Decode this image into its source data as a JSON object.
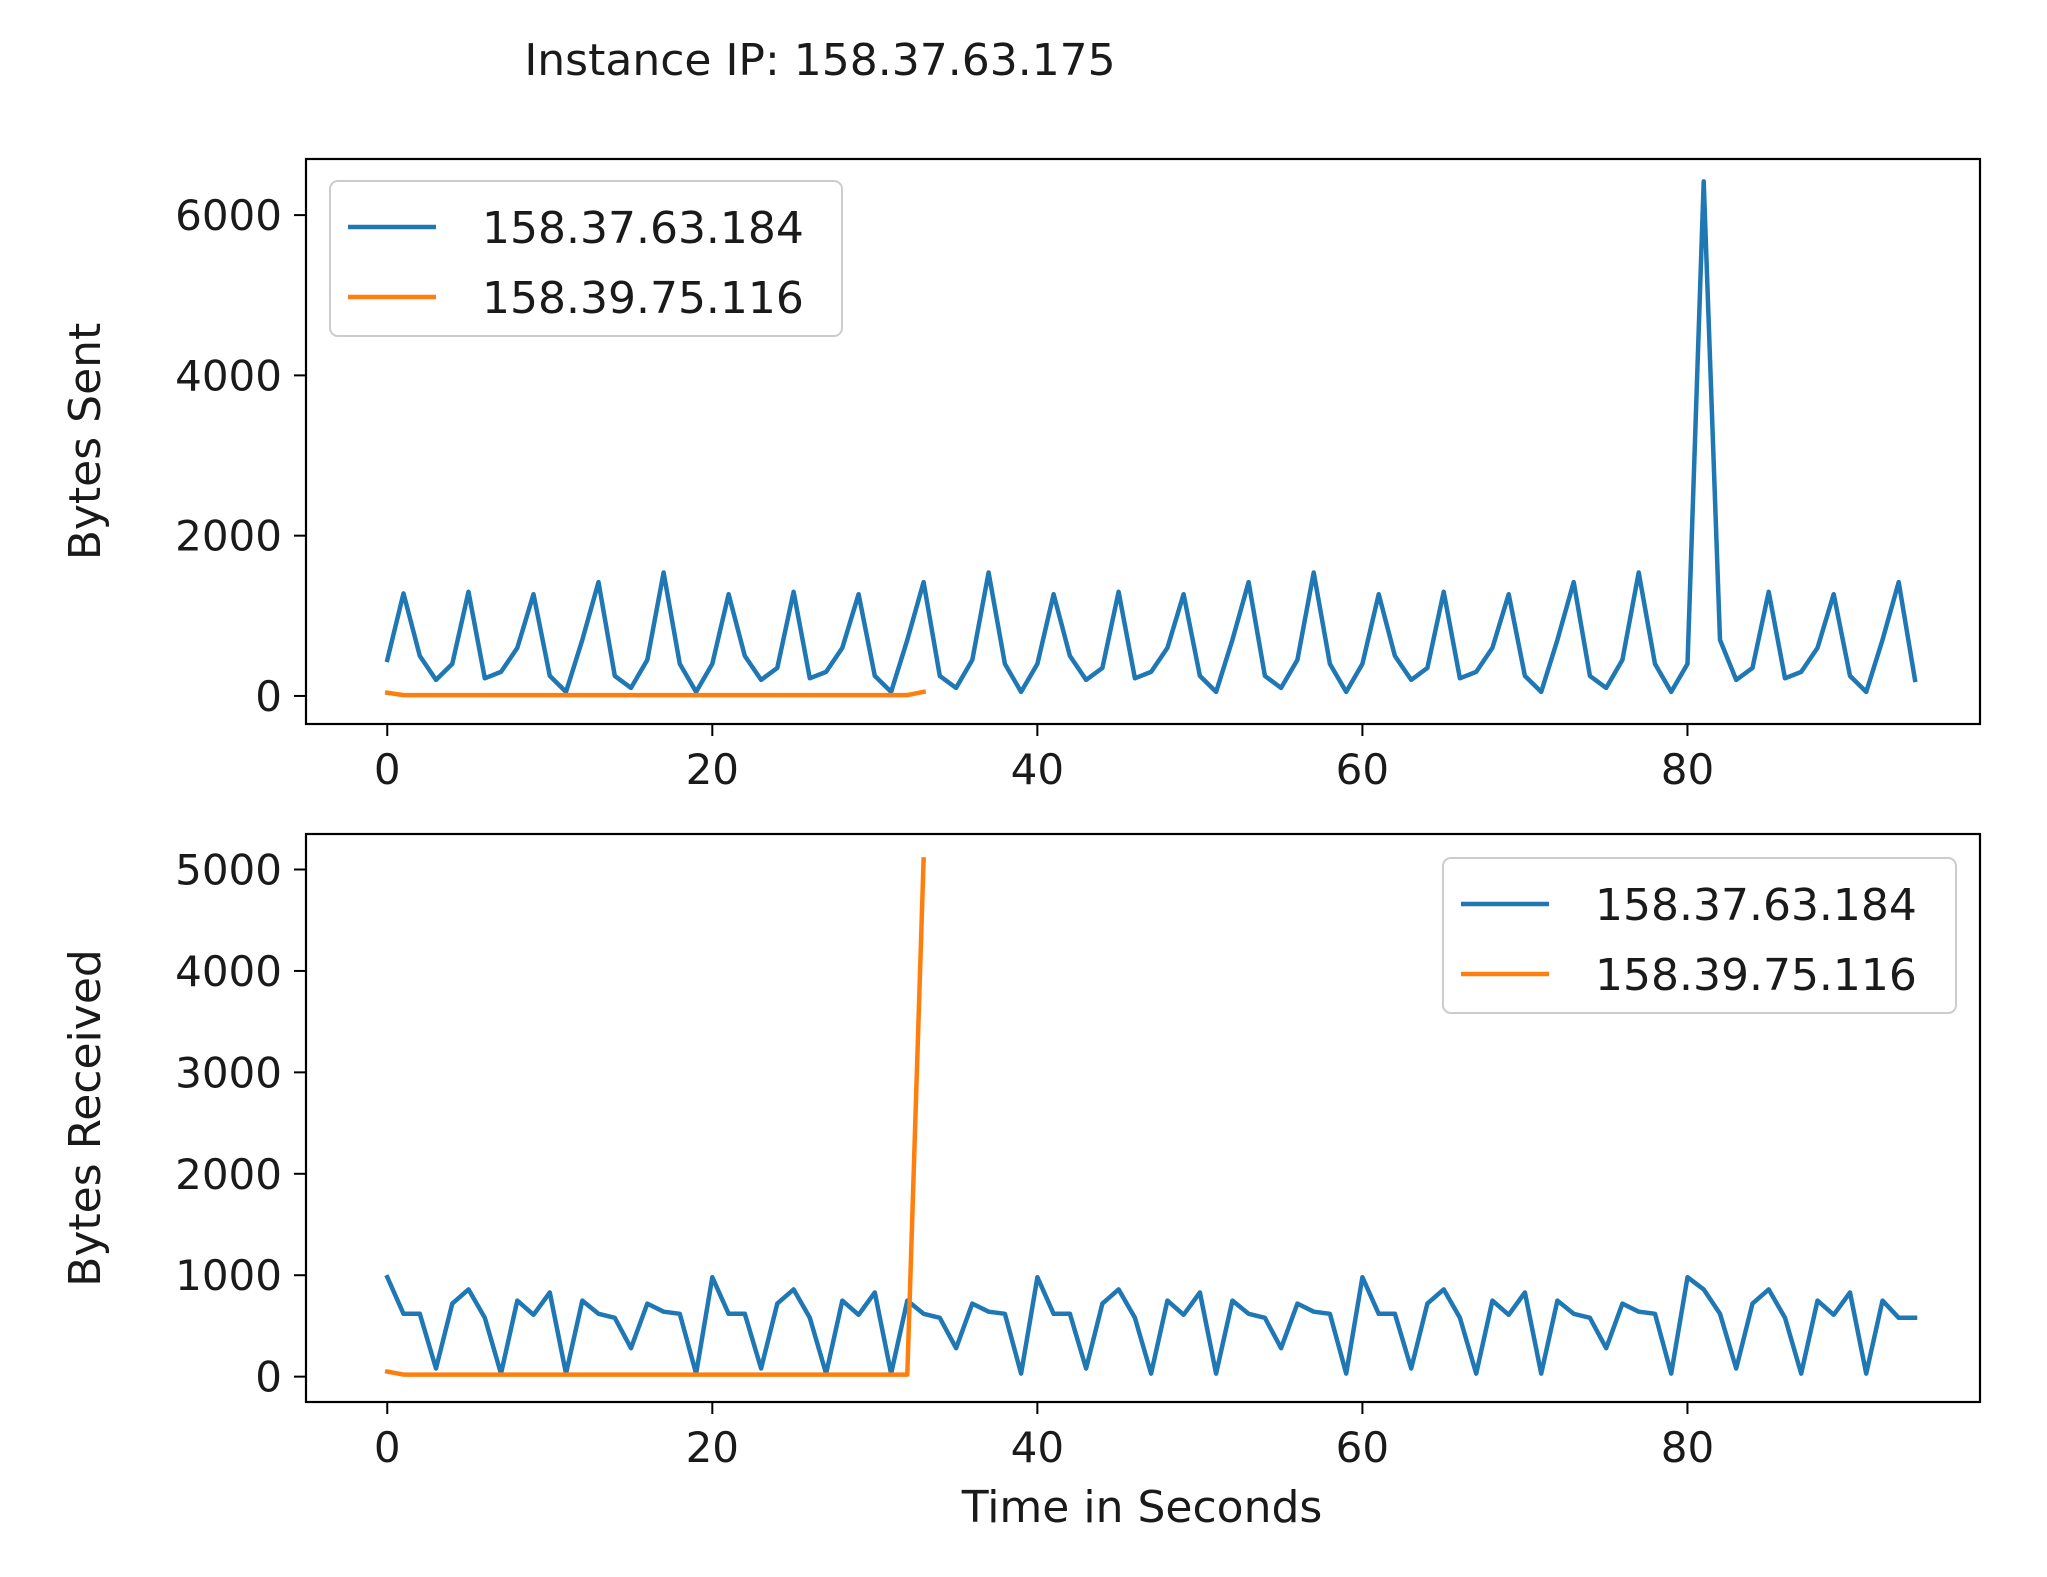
{
  "figure": {
    "suptitle": "Instance IP: 158.37.63.175",
    "xlabel": "Time in Seconds"
  },
  "chart_data": [
    {
      "type": "line",
      "title": "",
      "xlabel": "",
      "ylabel": "Bytes Sent",
      "xlim": [
        -5,
        98
      ],
      "ylim": [
        -350,
        6700
      ],
      "xticks": [
        0,
        20,
        40,
        60,
        80
      ],
      "yticks": [
        0,
        2000,
        4000,
        6000
      ],
      "grid": false,
      "legend": "upper left",
      "series": [
        {
          "name": "158.37.63.184",
          "color": "#1f77b4",
          "x": [
            0,
            1,
            2,
            3,
            4,
            5,
            6,
            7,
            8,
            9,
            10,
            11,
            12,
            13,
            14,
            15,
            16,
            17,
            18,
            19,
            20,
            21,
            22,
            23,
            24,
            25,
            26,
            27,
            28,
            29,
            30,
            31,
            32,
            33,
            34,
            35,
            36,
            37,
            38,
            39,
            40,
            41,
            42,
            43,
            44,
            45,
            46,
            47,
            48,
            49,
            50,
            51,
            52,
            53,
            54,
            55,
            56,
            57,
            58,
            59,
            60,
            61,
            62,
            63,
            64,
            65,
            66,
            67,
            68,
            69,
            70,
            71,
            72,
            73,
            74,
            75,
            76,
            77,
            78,
            79,
            80,
            81,
            82,
            83,
            84,
            85,
            86,
            87,
            88,
            89,
            90,
            91,
            92,
            93,
            94
          ],
          "values": [
            450,
            1280,
            500,
            200,
            400,
            1300,
            220,
            300,
            600,
            1270,
            250,
            50,
            700,
            1420,
            250,
            100,
            450,
            1540,
            400,
            50,
            400,
            1270,
            500,
            200,
            350,
            1300,
            220,
            300,
            600,
            1270,
            250,
            50,
            700,
            1420,
            250,
            100,
            450,
            1540,
            400,
            50,
            400,
            1270,
            500,
            200,
            350,
            1300,
            220,
            300,
            600,
            1270,
            250,
            50,
            700,
            1420,
            250,
            100,
            450,
            1540,
            400,
            50,
            400,
            1270,
            500,
            200,
            350,
            1300,
            220,
            300,
            600,
            1270,
            250,
            50,
            700,
            1420,
            250,
            100,
            450,
            1540,
            400,
            50,
            400,
            6420,
            700,
            200,
            350,
            1300,
            220,
            300,
            600,
            1270,
            250,
            50,
            700,
            1420,
            200
          ]
        },
        {
          "name": "158.39.75.116",
          "color": "#ff7f0e",
          "x": [
            0,
            1,
            2,
            3,
            4,
            5,
            6,
            7,
            8,
            9,
            10,
            11,
            12,
            13,
            14,
            15,
            16,
            17,
            18,
            19,
            20,
            21,
            22,
            23,
            24,
            25,
            26,
            27,
            28,
            29,
            30,
            31,
            32,
            33
          ],
          "values": [
            40,
            10,
            10,
            10,
            10,
            10,
            10,
            10,
            10,
            10,
            10,
            10,
            10,
            10,
            10,
            10,
            10,
            10,
            10,
            10,
            10,
            10,
            10,
            10,
            10,
            10,
            10,
            10,
            10,
            10,
            10,
            10,
            10,
            50
          ]
        }
      ]
    },
    {
      "type": "line",
      "title": "",
      "xlabel": "Time in Seconds",
      "ylabel": "Bytes Received",
      "xlim": [
        -5,
        98
      ],
      "ylim": [
        -250,
        5350
      ],
      "xticks": [
        0,
        20,
        40,
        60,
        80
      ],
      "yticks": [
        0,
        1000,
        2000,
        3000,
        4000,
        5000
      ],
      "grid": false,
      "legend": "upper right",
      "series": [
        {
          "name": "158.37.63.184",
          "color": "#1f77b4",
          "x": [
            0,
            1,
            2,
            3,
            4,
            5,
            6,
            7,
            8,
            9,
            10,
            11,
            12,
            13,
            14,
            15,
            16,
            17,
            18,
            19,
            20,
            21,
            22,
            23,
            24,
            25,
            26,
            27,
            28,
            29,
            30,
            31,
            32,
            33,
            34,
            35,
            36,
            37,
            38,
            39,
            40,
            41,
            42,
            43,
            44,
            45,
            46,
            47,
            48,
            49,
            50,
            51,
            52,
            53,
            54,
            55,
            56,
            57,
            58,
            59,
            60,
            61,
            62,
            63,
            64,
            65,
            66,
            67,
            68,
            69,
            70,
            71,
            72,
            73,
            74,
            75,
            76,
            77,
            78,
            79,
            80,
            81,
            82,
            83,
            84,
            85,
            86,
            87,
            88,
            89,
            90,
            91,
            92,
            93,
            94
          ],
          "values": [
            980,
            620,
            620,
            80,
            720,
            860,
            580,
            30,
            750,
            610,
            830,
            30,
            750,
            620,
            580,
            280,
            720,
            640,
            620,
            30,
            980,
            620,
            620,
            80,
            720,
            860,
            580,
            30,
            750,
            610,
            830,
            30,
            750,
            620,
            580,
            280,
            720,
            640,
            620,
            30,
            980,
            620,
            620,
            80,
            720,
            860,
            580,
            30,
            750,
            610,
            830,
            30,
            750,
            620,
            580,
            280,
            720,
            640,
            620,
            30,
            980,
            620,
            620,
            80,
            720,
            860,
            580,
            30,
            750,
            610,
            830,
            30,
            750,
            620,
            580,
            280,
            720,
            640,
            620,
            30,
            980,
            860,
            620,
            80,
            720,
            860,
            580,
            30,
            750,
            610,
            830,
            30,
            750,
            580,
            580
          ]
        },
        {
          "name": "158.39.75.116",
          "color": "#ff7f0e",
          "x": [
            0,
            1,
            2,
            3,
            4,
            5,
            6,
            7,
            8,
            9,
            10,
            11,
            12,
            13,
            14,
            15,
            16,
            17,
            18,
            19,
            20,
            21,
            22,
            23,
            24,
            25,
            26,
            27,
            28,
            29,
            30,
            31,
            32,
            33
          ],
          "values": [
            50,
            20,
            20,
            20,
            20,
            20,
            20,
            20,
            20,
            20,
            20,
            20,
            20,
            20,
            20,
            20,
            20,
            20,
            20,
            20,
            20,
            20,
            20,
            20,
            20,
            20,
            20,
            20,
            20,
            20,
            20,
            20,
            20,
            5100
          ]
        }
      ]
    }
  ]
}
